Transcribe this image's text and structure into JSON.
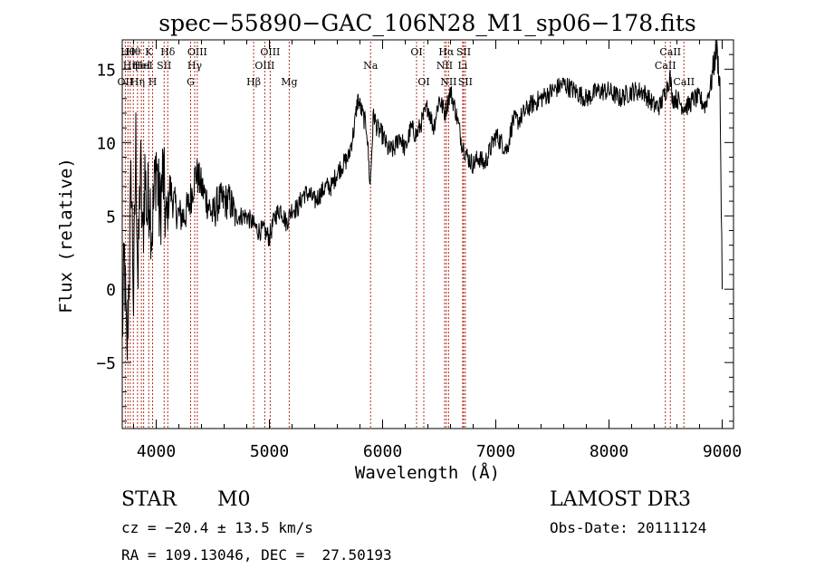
{
  "chart_data": {
    "type": "line",
    "title": "spec−55890−GAC_106N28_M1_sp06−178.fits",
    "xlabel": "Wavelength (Å)",
    "ylabel": "Flux (relative)",
    "xlim": [
      3700,
      9100
    ],
    "ylim": [
      -9.5,
      17
    ],
    "xticks": [
      4000,
      5000,
      6000,
      7000,
      8000,
      9000
    ],
    "yticks": [
      -5,
      0,
      5,
      10,
      15
    ],
    "grid": false,
    "line_color": "#000000",
    "marker_color": "#b03020",
    "series": [
      {
        "x": [
          3700,
          3720,
          3740,
          3760,
          3780,
          3800,
          3820,
          3840,
          3860,
          3880,
          3900,
          3920,
          3940,
          3960,
          3980,
          4000,
          4030,
          4060,
          4090,
          4120,
          4150,
          4200,
          4250,
          4300,
          4350,
          4400,
          4450,
          4500,
          4550,
          4600,
          4650,
          4700,
          4750,
          4800,
          4850,
          4900,
          4950,
          5000,
          5050,
          5100,
          5150,
          5200,
          5250,
          5300,
          5350,
          5400,
          5450,
          5500,
          5550,
          5600,
          5650,
          5700,
          5750,
          5780,
          5820,
          5860,
          5890,
          5920,
          5950,
          6000,
          6050,
          6100,
          6150,
          6200,
          6250,
          6300,
          6350,
          6400,
          6450,
          6500,
          6550,
          6600,
          6650,
          6700,
          6750,
          6800,
          6850,
          6900,
          6950,
          7000,
          7050,
          7100,
          7150,
          7200,
          7300,
          7400,
          7500,
          7600,
          7700,
          7800,
          7900,
          8000,
          8100,
          8200,
          8300,
          8400,
          8450,
          8500,
          8540,
          8560,
          8600,
          8650,
          8700,
          8750,
          8800,
          8850,
          8900,
          8950,
          8980,
          9000
        ],
        "y": [
          -3,
          2,
          -5,
          1,
          8,
          -1,
          10,
          0,
          9,
          3,
          8,
          5,
          7,
          4,
          6,
          9,
          5,
          8,
          4,
          7,
          6,
          5,
          5,
          6,
          8,
          7,
          6,
          5,
          6,
          6,
          6,
          5,
          5,
          5,
          4.5,
          4,
          4,
          3.5,
          5,
          5.5,
          4.5,
          5.5,
          5.5,
          6.5,
          6.5,
          6,
          6.5,
          7,
          7,
          8,
          8.5,
          9,
          11,
          13,
          12,
          11,
          7,
          12,
          11,
          10.5,
          9.5,
          9.5,
          10.5,
          9.5,
          11,
          10.5,
          11.5,
          12.5,
          11,
          13,
          12,
          13.5,
          12,
          10,
          9,
          8.5,
          9,
          8.5,
          9.5,
          10.5,
          10,
          9.5,
          11.5,
          11.5,
          12.5,
          13,
          13.5,
          14,
          13.5,
          13,
          13.5,
          13.5,
          13,
          13.5,
          13.5,
          12.5,
          12.5,
          13.5,
          14.5,
          13,
          13,
          12.5,
          12.5,
          13,
          13,
          12.5,
          14,
          16.5,
          14,
          0
        ]
      }
    ],
    "line_markers": [
      {
        "x": 3727,
        "label": "OII",
        "row": 2
      },
      {
        "x": 3750,
        "label": "Hθ",
        "row": 0
      },
      {
        "x": 3771,
        "label": "Hη",
        "row": 1
      },
      {
        "x": 3798,
        "label": "Hθ",
        "row": 0
      },
      {
        "x": 3835,
        "label": "Hη",
        "row": 2
      },
      {
        "x": 3869,
        "label": "HeI",
        "row": 1
      },
      {
        "x": 3889,
        "label": "HeI",
        "row": 1
      },
      {
        "x": 3934,
        "label": "K",
        "row": 0
      },
      {
        "x": 3968,
        "label": "H",
        "row": 2
      },
      {
        "x": 4070,
        "label": "SII",
        "row": 1
      },
      {
        "x": 4102,
        "label": "Hδ",
        "row": 0
      },
      {
        "x": 4304,
        "label": "G",
        "row": 2
      },
      {
        "x": 4340,
        "label": "Hγ",
        "row": 1
      },
      {
        "x": 4363,
        "label": "OIII",
        "row": 0
      },
      {
        "x": 4861,
        "label": "Hβ",
        "row": 2
      },
      {
        "x": 4959,
        "label": "OIII",
        "row": 1
      },
      {
        "x": 5007,
        "label": "OIII",
        "row": 0
      },
      {
        "x": 5175,
        "label": "Mg",
        "row": 2
      },
      {
        "x": 5894,
        "label": "Na",
        "row": 1
      },
      {
        "x": 6300,
        "label": "OI",
        "row": 0
      },
      {
        "x": 6364,
        "label": "OI",
        "row": 2
      },
      {
        "x": 6548,
        "label": "NII",
        "row": 1
      },
      {
        "x": 6563,
        "label": "Hα",
        "row": 0
      },
      {
        "x": 6583,
        "label": "NII",
        "row": 2
      },
      {
        "x": 6707,
        "label": "Li",
        "row": 1
      },
      {
        "x": 6716,
        "label": "SII",
        "row": 0
      },
      {
        "x": 6731,
        "label": "SII",
        "row": 2
      },
      {
        "x": 8498,
        "label": "CaII",
        "row": 1
      },
      {
        "x": 8542,
        "label": "CaII",
        "row": 0
      },
      {
        "x": 8662,
        "label": "CaII",
        "row": 2
      }
    ]
  },
  "footer": {
    "type_label": "STAR",
    "subclass": "M0",
    "survey": "LAMOST DR3",
    "cz": "cz = −20.4 ± 13.5 km/s",
    "obs_date": "Obs-Date: 20111124",
    "coords": "RA = 109.13046, DEC =  27.50193"
  }
}
